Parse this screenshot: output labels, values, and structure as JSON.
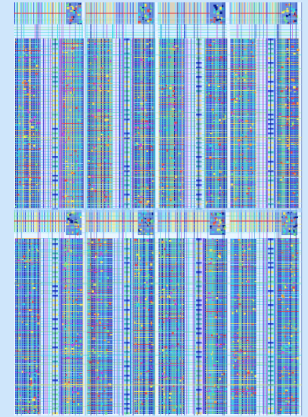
{
  "view": {
    "title": "",
    "background_color": "#cfe6fb"
  },
  "layout_view": {
    "type": "ic-layout",
    "tile_grid": {
      "columns": 4,
      "rows": 2
    },
    "block_types": [
      "standard-cell-column",
      "driver-strip",
      "routing-channel",
      "io-pad-cell"
    ],
    "palette": {
      "panel": "#e9f6ff",
      "metal_blue": "#1f3fd6",
      "metal_dark": "#0a1a8c",
      "metal_cyan": "#33d6e6",
      "metal_green": "#6fe08a",
      "metal_yellow": "#f2e85a",
      "metal_orange": "#f0a040",
      "metal_red": "#e64a4a",
      "metal_magenta": "#c050e0",
      "metal_teal": "#2fb8a8",
      "pale_wire": "#a8dcff"
    },
    "grid_lines": true
  }
}
